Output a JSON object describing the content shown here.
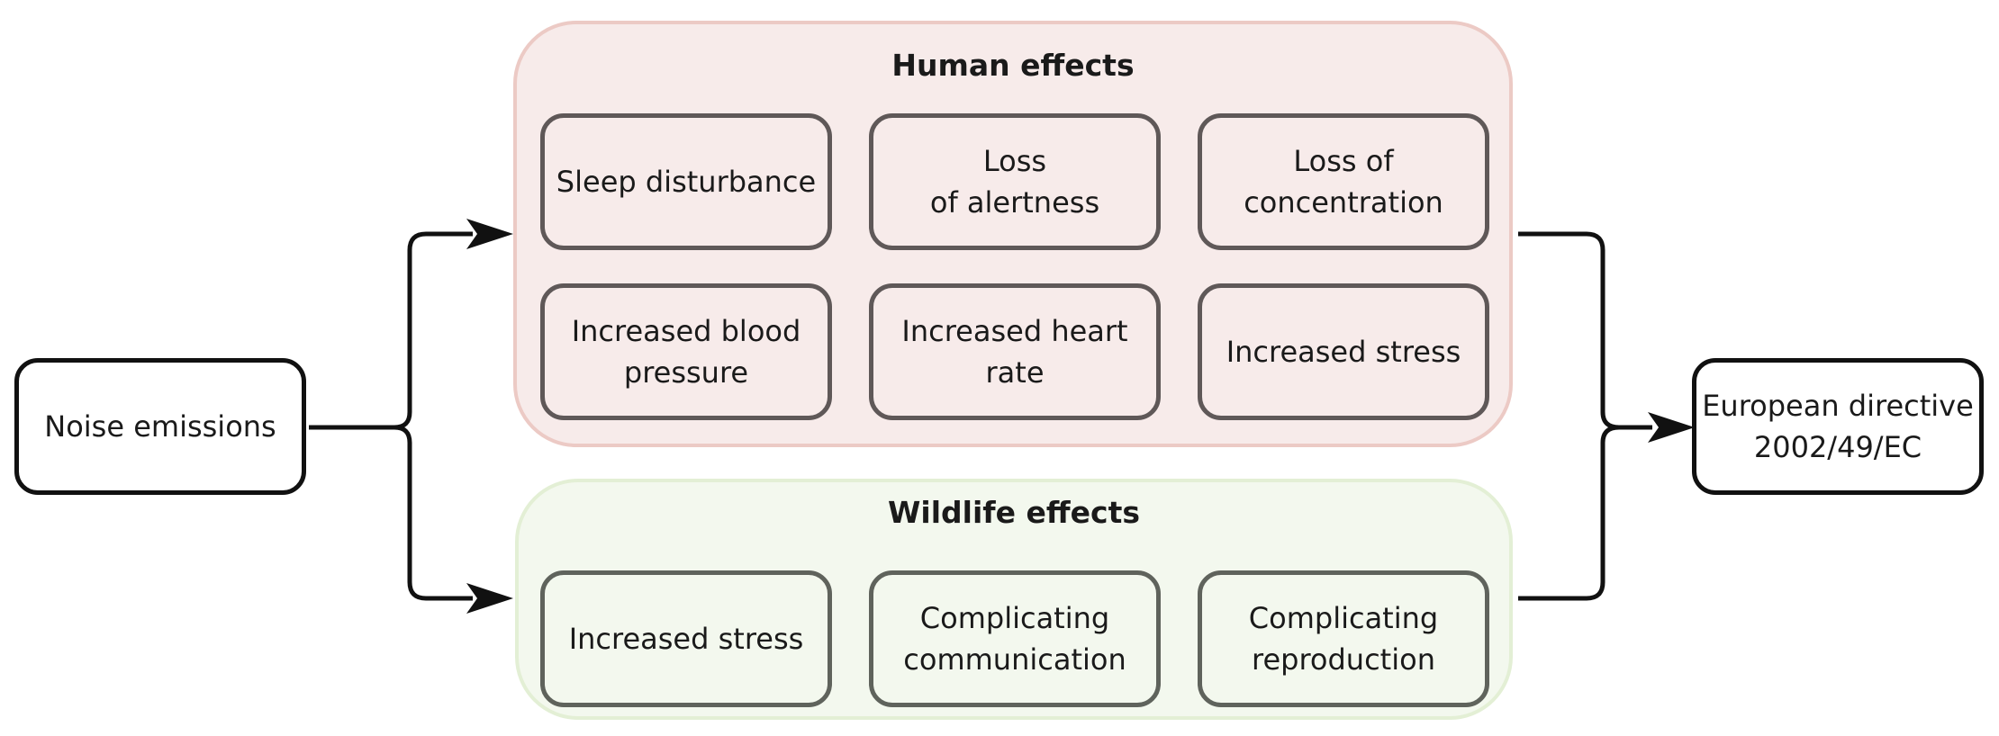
{
  "source_node": {
    "label": "Noise emissions"
  },
  "target_node": {
    "label": "European directive\n2002/49/EC"
  },
  "human_group": {
    "title": "Human effects",
    "items": [
      "Sleep disturbance",
      "Loss\nof alertness",
      "Loss of\nconcentration",
      "Increased blood\npressure",
      "Increased heart rate",
      "Increased stress"
    ]
  },
  "wildlife_group": {
    "title": "Wildlife effects",
    "items": [
      "Increased stress",
      "Complicating\ncommunication",
      "Complicating\nreproduction"
    ]
  },
  "colors": {
    "human_fill": "#f7ebea",
    "human_border": "#eccac5",
    "wildlife_fill": "#f3f8ee",
    "wildlife_border": "#e3efd5",
    "box_border": "#5f5858",
    "arrow": "#111111"
  }
}
